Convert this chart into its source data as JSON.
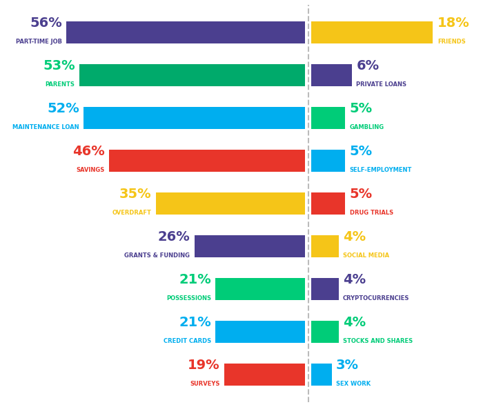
{
  "left_bars": [
    {
      "label": "PART-TIME JOB",
      "value": 56,
      "bar_color": "#4B3F8F",
      "pct_color": "#4B3F8F",
      "lbl_color": "#4B3F8F"
    },
    {
      "label": "PARENTS",
      "value": 53,
      "bar_color": "#00AA6B",
      "pct_color": "#00CC78",
      "lbl_color": "#00CC78"
    },
    {
      "label": "MAINTENANCE LOAN",
      "value": 52,
      "bar_color": "#00AEEF",
      "pct_color": "#00AEEF",
      "lbl_color": "#00AEEF"
    },
    {
      "label": "SAVINGS",
      "value": 46,
      "bar_color": "#E8352A",
      "pct_color": "#E8352A",
      "lbl_color": "#E8352A"
    },
    {
      "label": "OVERDRAFT",
      "value": 35,
      "bar_color": "#F5C518",
      "pct_color": "#F5C518",
      "lbl_color": "#F5C518"
    },
    {
      "label": "GRANTS & FUNDING",
      "value": 26,
      "bar_color": "#4B3F8F",
      "pct_color": "#4B3F8F",
      "lbl_color": "#4B3F8F"
    },
    {
      "label": "POSSESSIONS",
      "value": 21,
      "bar_color": "#00CC78",
      "pct_color": "#00CC78",
      "lbl_color": "#00CC78"
    },
    {
      "label": "CREDIT CARDS",
      "value": 21,
      "bar_color": "#00AEEF",
      "pct_color": "#00AEEF",
      "lbl_color": "#00AEEF"
    },
    {
      "label": "SURVEYS",
      "value": 19,
      "bar_color": "#E8352A",
      "pct_color": "#E8352A",
      "lbl_color": "#E8352A"
    }
  ],
  "right_bars": [
    {
      "label": "FRIENDS",
      "value": 18,
      "bar_color": "#F5C518",
      "pct_color": "#F5C518",
      "lbl_color": "#F5C518"
    },
    {
      "label": "PRIVATE LOANS",
      "value": 6,
      "bar_color": "#4B3F8F",
      "pct_color": "#4B3F8F",
      "lbl_color": "#4B3F8F"
    },
    {
      "label": "GAMBLING",
      "value": 5,
      "bar_color": "#00CC78",
      "pct_color": "#00CC78",
      "lbl_color": "#00CC78"
    },
    {
      "label": "SELF-EMPLOYMENT",
      "value": 5,
      "bar_color": "#00AEEF",
      "pct_color": "#00AEEF",
      "lbl_color": "#00AEEF"
    },
    {
      "label": "DRUG TRIALS",
      "value": 5,
      "bar_color": "#E8352A",
      "pct_color": "#E8352A",
      "lbl_color": "#E8352A"
    },
    {
      "label": "SOCIAL MEDIA",
      "value": 4,
      "bar_color": "#F5C518",
      "pct_color": "#F5C518",
      "lbl_color": "#F5C518"
    },
    {
      "label": "CRYPTOCURRENCIES",
      "value": 4,
      "bar_color": "#4B3F8F",
      "pct_color": "#4B3F8F",
      "lbl_color": "#4B3F8F"
    },
    {
      "label": "STOCKS AND SHARES",
      "value": 4,
      "bar_color": "#00CC78",
      "pct_color": "#00CC78",
      "lbl_color": "#00CC78"
    },
    {
      "label": "SEX WORK",
      "value": 3,
      "bar_color": "#00AEEF",
      "pct_color": "#00AEEF",
      "lbl_color": "#00AEEF"
    }
  ],
  "background_color": "#FFFFFF",
  "figsize": [
    7.13,
    5.9
  ],
  "dpi": 100
}
